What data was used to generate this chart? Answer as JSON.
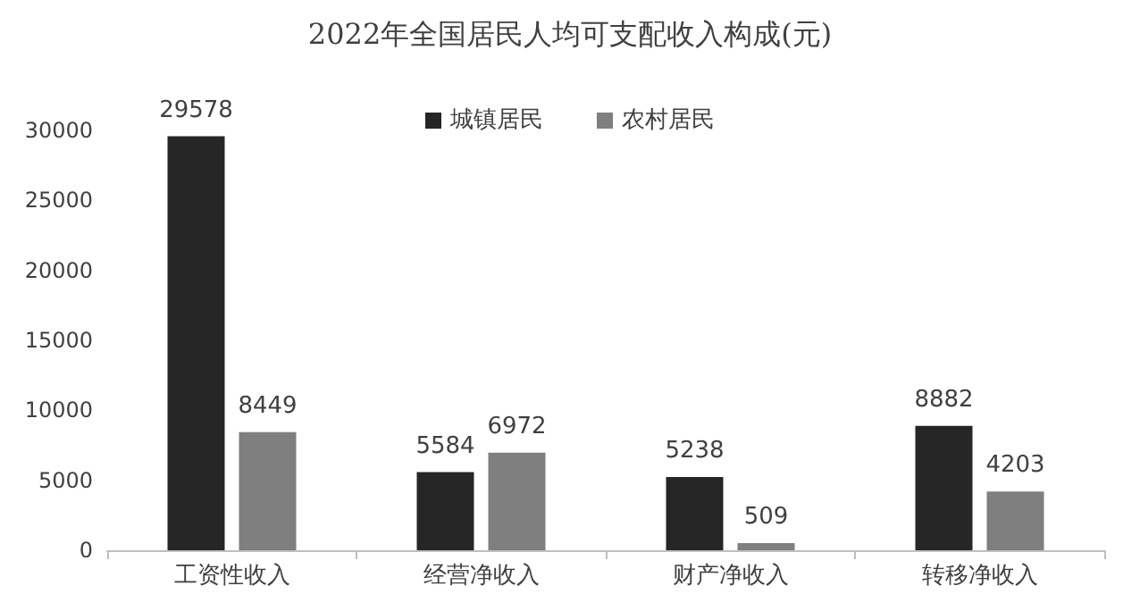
{
  "chart_data": {
    "type": "bar",
    "title": "2022年全国居民人均可支配收入构成(元)",
    "categories": [
      "工资性收入",
      "经营净收入",
      "财产净收入",
      "转移净收入"
    ],
    "series": [
      {
        "name": "城镇居民",
        "color": "#262626",
        "values": [
          29578,
          5584,
          5238,
          8882
        ]
      },
      {
        "name": "农村居民",
        "color": "#7f7f7f",
        "values": [
          8449,
          6972,
          509,
          4203
        ]
      }
    ],
    "ylim": [
      0,
      30000
    ],
    "yticks": [
      0,
      5000,
      10000,
      15000,
      20000,
      25000,
      30000
    ],
    "grid": false,
    "legend": "top",
    "data_labels": true
  }
}
